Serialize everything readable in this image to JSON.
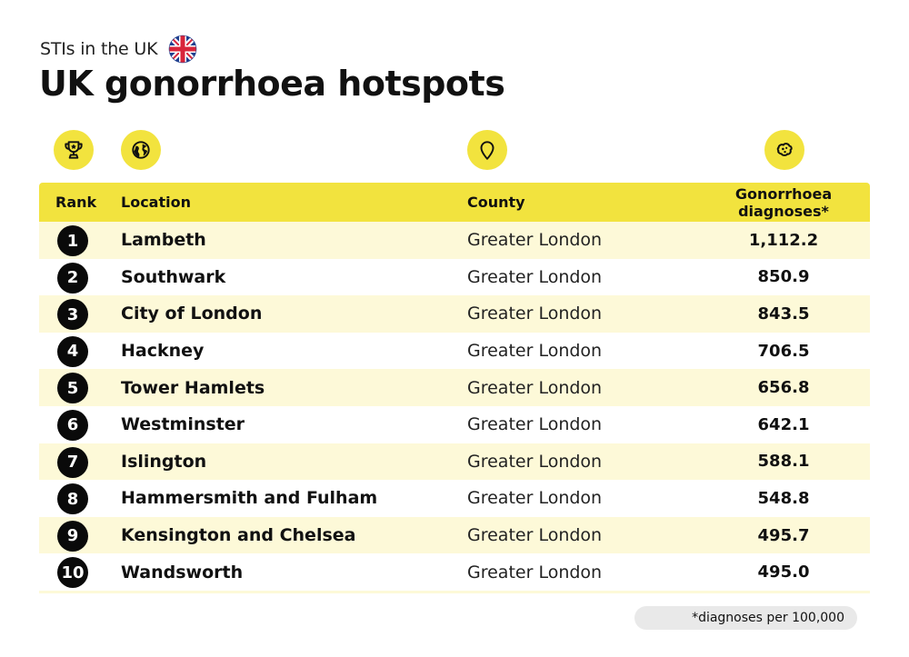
{
  "header": {
    "kicker": "STIs in the UK",
    "flag_icon": "uk-flag-icon",
    "title": "UK gonorrhoea hotspots"
  },
  "column_icons": [
    "trophy-icon",
    "globe-icon",
    "map-pin-icon",
    "microbe-icon"
  ],
  "table": {
    "columns": {
      "rank": "Rank",
      "location": "Location",
      "county": "County",
      "diagnoses_line1": "Gonorrhoea",
      "diagnoses_line2": "diagnoses*"
    },
    "rows": [
      {
        "rank": "1",
        "location": "Lambeth",
        "county": "Greater London",
        "diagnoses": "1,112.2"
      },
      {
        "rank": "2",
        "location": "Southwark",
        "county": "Greater London",
        "diagnoses": "850.9"
      },
      {
        "rank": "3",
        "location": "City of London",
        "county": "Greater London",
        "diagnoses": "843.5"
      },
      {
        "rank": "4",
        "location": "Hackney",
        "county": "Greater London",
        "diagnoses": "706.5"
      },
      {
        "rank": "5",
        "location": "Tower Hamlets",
        "county": "Greater London",
        "diagnoses": "656.8"
      },
      {
        "rank": "6",
        "location": "Westminster",
        "county": "Greater London",
        "diagnoses": "642.1"
      },
      {
        "rank": "7",
        "location": "Islington",
        "county": "Greater London",
        "diagnoses": "588.1"
      },
      {
        "rank": "8",
        "location": "Hammersmith and Fulham",
        "county": "Greater London",
        "diagnoses": "548.8"
      },
      {
        "rank": "9",
        "location": "Kensington and Chelsea",
        "county": "Greater London",
        "diagnoses": "495.7"
      },
      {
        "rank": "10",
        "location": "Wandsworth",
        "county": "Greater London",
        "diagnoses": "495.0"
      }
    ]
  },
  "footnote": "*diagnoses per 100,000",
  "colors": {
    "accent_yellow": "#f2e33e",
    "row_shade": "#fdf9d8",
    "badge_black": "#0a0a0a",
    "footnote_bg": "#e9e9e9",
    "flag_blue": "#1f3f8f",
    "flag_red": "#d8253a"
  }
}
